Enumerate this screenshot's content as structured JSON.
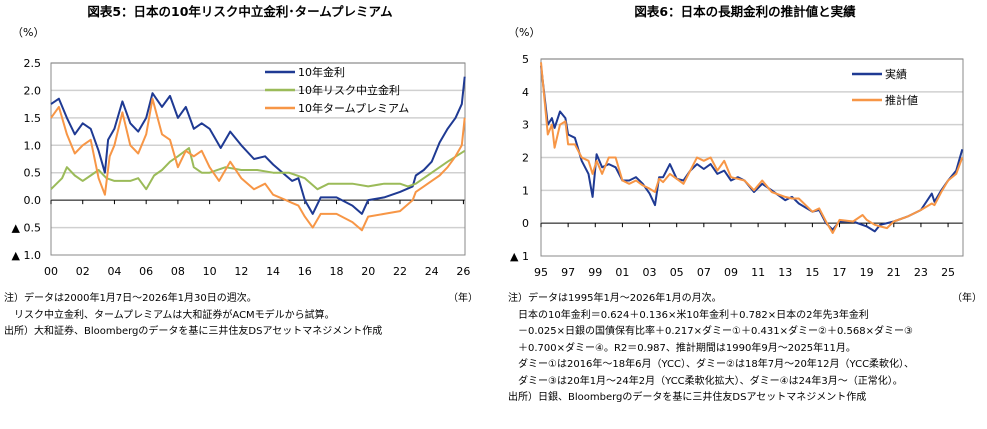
{
  "chart_data": [
    {
      "type": "line",
      "title": "図表5：日本の10年リスク中立金利･タームプレミアム",
      "ylabel": "（%）",
      "xlabel": "（年）",
      "ylim": [
        -1.0,
        2.5
      ],
      "yticks": [
        2.5,
        2.0,
        1.5,
        1.0,
        0.5,
        0.0,
        -0.5,
        -1.0
      ],
      "ytick_labels": [
        "2.5",
        "2.0",
        "1.5",
        "1.0",
        "0.5",
        "0.0",
        "▲ 0.5",
        "▲ 1.0"
      ],
      "xlim": [
        2000,
        2026.1
      ],
      "xticks": [
        2000,
        2002,
        2004,
        2006,
        2008,
        2010,
        2012,
        2014,
        2016,
        2018,
        2020,
        2022,
        2024,
        2026
      ],
      "xtick_labels": [
        "00",
        "02",
        "04",
        "06",
        "08",
        "10",
        "12",
        "14",
        "16",
        "18",
        "20",
        "22",
        "24",
        "26"
      ],
      "grid": true,
      "legend": "top-right",
      "series": [
        {
          "name": "10年金利",
          "color": "#1f3a93",
          "x": [
            2000,
            2000.5,
            2001,
            2001.5,
            2002,
            2002.5,
            2003,
            2003.4,
            2003.6,
            2004,
            2004.5,
            2005,
            2005.5,
            2006,
            2006.4,
            2007,
            2007.5,
            2008,
            2008.5,
            2009,
            2009.5,
            2010,
            2010.7,
            2011.3,
            2012,
            2012.8,
            2013.5,
            2014,
            2014.8,
            2015.2,
            2015.6,
            2016,
            2016.5,
            2017,
            2018,
            2019,
            2019.6,
            2020,
            2021,
            2022,
            2022.8,
            2023,
            2023.5,
            2024,
            2024.5,
            2025,
            2025.5,
            2025.9,
            2026.08
          ],
          "y": [
            1.75,
            1.85,
            1.5,
            1.2,
            1.4,
            1.3,
            0.9,
            0.5,
            1.1,
            1.3,
            1.8,
            1.4,
            1.25,
            1.5,
            1.95,
            1.7,
            1.9,
            1.5,
            1.7,
            1.3,
            1.4,
            1.3,
            0.95,
            1.25,
            1.0,
            0.75,
            0.8,
            0.65,
            0.45,
            0.35,
            0.4,
            0.0,
            -0.25,
            0.05,
            0.05,
            -0.1,
            -0.25,
            0.0,
            0.05,
            0.15,
            0.25,
            0.45,
            0.55,
            0.7,
            1.05,
            1.3,
            1.5,
            1.75,
            2.25
          ]
        },
        {
          "name": "10年リスク中立金利",
          "color": "#9bbb59",
          "x": [
            2000,
            2000.7,
            2001,
            2001.5,
            2002,
            2002.5,
            2003,
            2003.5,
            2004,
            2005,
            2005.5,
            2006,
            2006.5,
            2007,
            2007.5,
            2008,
            2008.7,
            2009,
            2009.5,
            2010,
            2011,
            2012,
            2013,
            2014,
            2015,
            2016,
            2016.8,
            2017.5,
            2019,
            2020,
            2021,
            2022,
            2022.5,
            2023,
            2024,
            2025,
            2026.08
          ],
          "y": [
            0.2,
            0.4,
            0.6,
            0.45,
            0.35,
            0.45,
            0.55,
            0.4,
            0.35,
            0.35,
            0.4,
            0.2,
            0.45,
            0.55,
            0.7,
            0.8,
            0.95,
            0.6,
            0.5,
            0.5,
            0.6,
            0.55,
            0.55,
            0.5,
            0.5,
            0.4,
            0.2,
            0.3,
            0.3,
            0.25,
            0.3,
            0.3,
            0.25,
            0.3,
            0.5,
            0.7,
            0.9
          ]
        },
        {
          "name": "10年タームプレミアム",
          "color": "#f79646",
          "x": [
            2000,
            2000.5,
            2001,
            2001.5,
            2002,
            2002.5,
            2003,
            2003.4,
            2003.7,
            2004,
            2004.5,
            2005,
            2005.5,
            2006,
            2006.4,
            2007,
            2007.5,
            2008,
            2008.5,
            2009,
            2009.5,
            2010,
            2010.6,
            2011.3,
            2012,
            2012.8,
            2013.5,
            2014,
            2014.8,
            2015.2,
            2015.6,
            2016,
            2016.5,
            2017,
            2018,
            2019,
            2019.6,
            2020,
            2021,
            2022,
            2022.8,
            2023,
            2023.5,
            2024,
            2024.5,
            2025,
            2025.5,
            2025.9,
            2026.08
          ],
          "y": [
            1.5,
            1.7,
            1.2,
            0.85,
            1.0,
            1.1,
            0.4,
            0.1,
            0.8,
            1.0,
            1.6,
            1.0,
            0.85,
            1.2,
            1.85,
            1.2,
            1.1,
            0.6,
            0.9,
            0.8,
            0.9,
            0.6,
            0.35,
            0.7,
            0.4,
            0.2,
            0.3,
            0.1,
            0.0,
            -0.05,
            -0.1,
            -0.3,
            -0.5,
            -0.25,
            -0.25,
            -0.4,
            -0.55,
            -0.3,
            -0.25,
            -0.2,
            0.0,
            0.15,
            0.25,
            0.35,
            0.45,
            0.6,
            0.8,
            1.0,
            1.5
          ]
        }
      ]
    },
    {
      "type": "line",
      "title": "図表6：日本の長期金利の推計値と実績",
      "ylabel": "（%）",
      "xlabel": "（年）",
      "ylim": [
        -1,
        5
      ],
      "yticks": [
        5,
        4,
        3,
        2,
        1,
        0,
        -1
      ],
      "ytick_labels": [
        "5",
        "4",
        "3",
        "2",
        "1",
        "0",
        "▲ 1"
      ],
      "xlim": [
        1995,
        2026.1
      ],
      "xticks": [
        1995,
        1997,
        1999,
        2001,
        2003,
        2005,
        2007,
        2009,
        2011,
        2013,
        2015,
        2017,
        2019,
        2021,
        2023,
        2025
      ],
      "xtick_labels": [
        "95",
        "97",
        "99",
        "01",
        "03",
        "05",
        "07",
        "09",
        "11",
        "13",
        "15",
        "17",
        "19",
        "21",
        "23",
        "25"
      ],
      "grid": true,
      "legend": "top-right",
      "series": [
        {
          "name": "実績",
          "color": "#1f3a93",
          "x": [
            1995,
            1995.5,
            1995.8,
            1996,
            1996.4,
            1996.8,
            1997,
            1997.5,
            1998,
            1998.5,
            1998.8,
            1999.1,
            1999.5,
            2000,
            2000.5,
            2001,
            2001.5,
            2002,
            2002.5,
            2003,
            2003.4,
            2003.7,
            2004,
            2004.5,
            2005,
            2005.5,
            2006,
            2006.5,
            2007,
            2007.5,
            2008,
            2008.5,
            2009,
            2009.5,
            2010,
            2010.7,
            2011.3,
            2012,
            2013,
            2013.5,
            2014,
            2015,
            2015.5,
            2016,
            2016.5,
            2017,
            2018,
            2019,
            2019.6,
            2020,
            2021,
            2022,
            2023,
            2023.8,
            2024,
            2024.5,
            2025,
            2025.6,
            2026.05
          ],
          "y": [
            4.8,
            3.0,
            3.2,
            2.9,
            3.4,
            3.2,
            2.7,
            2.6,
            1.9,
            1.5,
            0.8,
            2.1,
            1.7,
            1.8,
            1.7,
            1.3,
            1.3,
            1.4,
            1.2,
            0.9,
            0.55,
            1.4,
            1.4,
            1.8,
            1.35,
            1.3,
            1.6,
            1.8,
            1.65,
            1.8,
            1.5,
            1.6,
            1.3,
            1.4,
            1.3,
            0.95,
            1.2,
            1.0,
            0.7,
            0.8,
            0.6,
            0.35,
            0.4,
            0.0,
            -0.2,
            0.05,
            0.05,
            -0.1,
            -0.25,
            -0.05,
            0.05,
            0.2,
            0.4,
            0.9,
            0.65,
            1.0,
            1.3,
            1.6,
            2.25
          ]
        },
        {
          "name": "推計値",
          "color": "#f79646",
          "x": [
            1995,
            1995.5,
            1995.8,
            1996,
            1996.4,
            1996.8,
            1997,
            1997.5,
            1998,
            1998.5,
            1998.8,
            1999.1,
            1999.5,
            2000,
            2000.5,
            2001,
            2001.5,
            2002,
            2002.5,
            2003,
            2003.4,
            2003.7,
            2004,
            2004.5,
            2005,
            2005.5,
            2006,
            2006.5,
            2007,
            2007.5,
            2008,
            2008.5,
            2009,
            2009.5,
            2010,
            2010.7,
            2011.3,
            2012,
            2013,
            2013.5,
            2014,
            2015,
            2015.5,
            2016,
            2016.5,
            2017,
            2018,
            2018.7,
            2019,
            2019.6,
            2020,
            2020.5,
            2021,
            2022,
            2023,
            2023.8,
            2024,
            2024.5,
            2025,
            2025.6,
            2026.05
          ],
          "y": [
            4.9,
            2.7,
            3.0,
            2.3,
            3.0,
            3.1,
            2.4,
            2.4,
            2.0,
            1.9,
            1.5,
            1.9,
            1.5,
            2.0,
            2.0,
            1.3,
            1.2,
            1.3,
            1.15,
            1.05,
            0.95,
            1.35,
            1.25,
            1.5,
            1.35,
            1.2,
            1.6,
            2.0,
            1.9,
            2.0,
            1.6,
            1.9,
            1.4,
            1.35,
            1.3,
            1.0,
            1.3,
            0.95,
            0.8,
            0.75,
            0.75,
            0.35,
            0.45,
            0.05,
            -0.3,
            0.1,
            0.05,
            0.25,
            0.1,
            -0.05,
            -0.1,
            -0.15,
            0.05,
            0.2,
            0.4,
            0.6,
            0.55,
            0.95,
            1.3,
            1.5,
            2.0
          ]
        }
      ]
    }
  ],
  "notes_left": [
    "注）データは2000年1月7日～2026年1月30日の週次。",
    "　リスク中立金利、タームプレミアムは大和証券がACMモデルから試算。",
    "出所）大和証券、Bloombergのデータを基に三井住友DSアセットマネジメント作成"
  ],
  "notes_right": [
    "注）データは1995年1月～2026年1月の月次。",
    "　日本の10年金利＝0.624＋0.136×米10年金利＋0.782×日本の2年先3年金利",
    "　－0.025×日銀の国債保有比率＋0.217×ダミー①＋0.431×ダミー②＋0.568×ダミー③",
    "　＋0.700×ダミー④。R2＝0.987、推計期間は1990年9月～2025年11月。",
    "　ダミー①は2016年～18年6月（YCC）、ダミー②は18年7月～20年12月（YCC柔軟化）、",
    "　ダミー③は20年1月～24年2月（YCC柔軟化拡大）、ダミー④は24年3月～（正常化）。",
    "出所）日銀、Bloombergのデータを基に三井住友DSアセットマネジメント作成"
  ]
}
